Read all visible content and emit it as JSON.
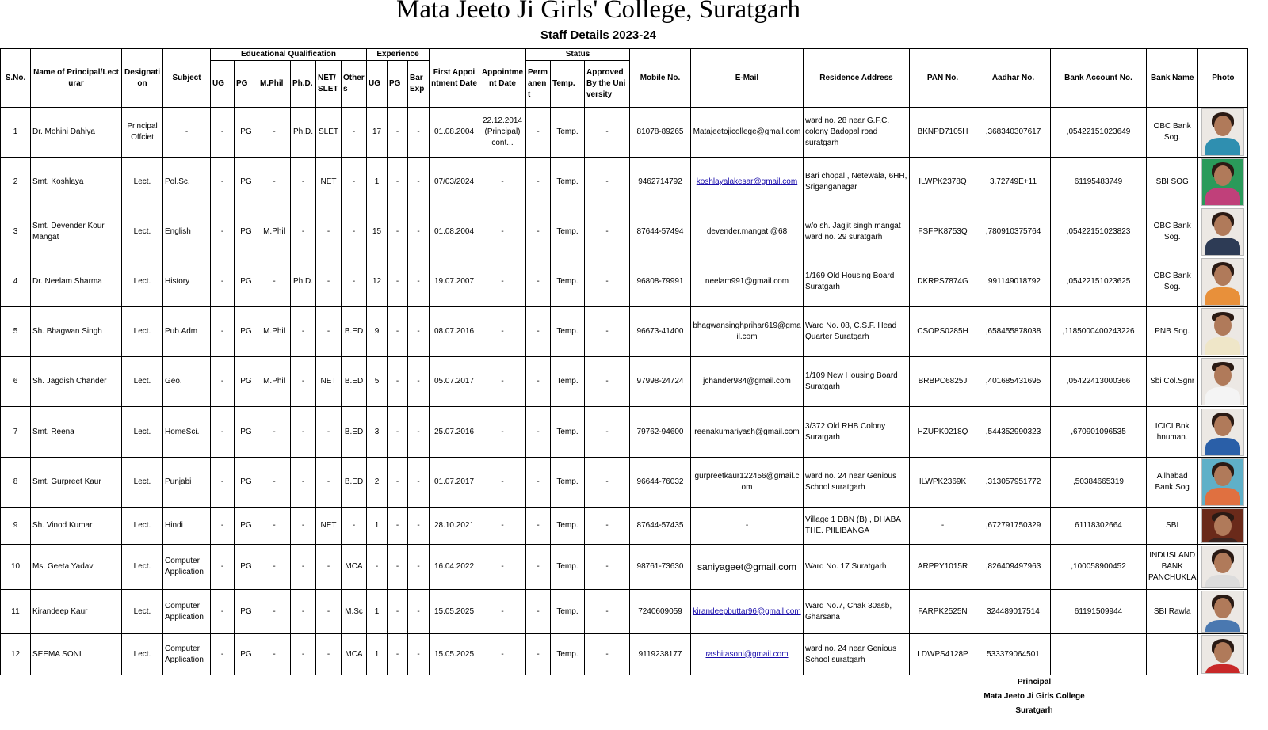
{
  "title": "Mata Jeeto Ji Girls' College, Suratgarh",
  "subtitle": "Staff Details 2023-24",
  "headers": {
    "sno": "S.No.",
    "name": "Name of Principal/Lecturar",
    "designation": "Designation",
    "subject": "Subject",
    "edu_group": "Educational Qualification",
    "edu": [
      "UG",
      "PG",
      "M.Phil",
      "Ph.D.",
      "NET/SLET",
      "Others"
    ],
    "exp_group": "Experience",
    "exp": [
      "UG",
      "PG",
      "Bar Exp"
    ],
    "first_appointment": "First Appointment Date",
    "appointment": "Appointment Date",
    "status_group": "Status",
    "status": [
      "Permanent",
      "Temp.",
      "Approved By the University"
    ],
    "mobile": "Mobile No.",
    "email": "E-Mail",
    "address": "Residence Address",
    "pan": "PAN No.",
    "aadhar": "Aadhar No.",
    "bank_account": "Bank Account No.",
    "bank_name": "Bank Name",
    "photo": "Photo"
  },
  "colors": {
    "link": "#1a0dab",
    "border": "#000000"
  },
  "rows": [
    {
      "sno": "1",
      "name": "Dr. Mohini Dahiya",
      "designation": "Principal Offciet",
      "subject": "-",
      "edu": [
        "-",
        "PG",
        "-",
        "Ph.D.",
        "SLET",
        "-"
      ],
      "exp": [
        "17",
        "-",
        "-"
      ],
      "first": "01.08.2004",
      "appt": "22.12.2014 (Principal) cont...",
      "status": [
        "-",
        "Temp.",
        "-"
      ],
      "mobile": "81078-89265",
      "email": "Matajeetojicollege@gmail.com",
      "email_link": false,
      "address": "ward no. 28 near G.F.C. colony Badopal road suratgarh",
      "pan": "BKNPD7105H",
      "aadhar": ",368340307617",
      "account": ",05422151023649",
      "bank": "OBC Bank Sog.",
      "photo": "woman-teal"
    },
    {
      "sno": "2",
      "name": "Smt. Koshlaya",
      "designation": "Lect.",
      "subject": "Pol.Sc.",
      "edu": [
        "-",
        "PG",
        "-",
        "-",
        "NET",
        "-"
      ],
      "exp": [
        "1",
        "-",
        "-"
      ],
      "first": "07/03/2024",
      "appt": "-",
      "status": [
        "-",
        "Temp.",
        "-"
      ],
      "mobile": "9462714792",
      "email": "koshlayalakesar@gmail.com",
      "email_link": true,
      "address": "Bari chopal , Netewala, 6HH, Sriganganagar",
      "pan": "ILWPK2378Q",
      "aadhar": "3.72749E+11",
      "account": "61195483749",
      "bank": "SBI SOG",
      "photo": "woman-pink"
    },
    {
      "sno": "3",
      "name": "Smt. Devender Kour Mangat",
      "designation": "Lect.",
      "subject": "English",
      "edu": [
        "-",
        "PG",
        "M.Phil",
        "-",
        "-",
        "-"
      ],
      "exp": [
        "15",
        "-",
        "-"
      ],
      "first": "01.08.2004",
      "appt": "-",
      "status": [
        "-",
        "Temp.",
        "-"
      ],
      "mobile": "87644-57494",
      "email": "devender.mangat @68",
      "email_link": false,
      "address": "w/o sh. Jagjit singh mangat ward no. 29 suratgarh",
      "pan": "FSFPK8753Q",
      "aadhar": ",780910375764",
      "account": ",05422151023823",
      "bank": "OBC Bank Sog.",
      "photo": "woman-dark"
    },
    {
      "sno": "4",
      "name": "Dr. Neelam Sharma",
      "designation": "Lect.",
      "subject": "History",
      "edu": [
        "-",
        "PG",
        "-",
        "Ph.D.",
        "-",
        "-"
      ],
      "exp": [
        "12",
        "-",
        "-"
      ],
      "first": "19.07.2007",
      "appt": "-",
      "status": [
        "-",
        "Temp.",
        "-"
      ],
      "mobile": "96808-79991",
      "email": "neelam991@gmail.com",
      "email_link": false,
      "address": "1/169 Old Housing Board Suratgarh",
      "pan": "DKRPS7874G",
      "aadhar": ",991149018792",
      "account": ",05422151023625",
      "bank": "OBC Bank Sog.",
      "photo": "woman-orange"
    },
    {
      "sno": "5",
      "name": "Sh. Bhagwan Singh",
      "designation": "Lect.",
      "subject": "Pub.Adm",
      "edu": [
        "-",
        "PG",
        "M.Phil",
        "-",
        "-",
        "B.ED"
      ],
      "exp": [
        "9",
        "-",
        "-"
      ],
      "first": "08.07.2016",
      "appt": "-",
      "status": [
        "-",
        "Temp.",
        "-"
      ],
      "mobile": "96673-41400",
      "email": "bhagwansinghprihar619@gmail.com",
      "email_link": false,
      "address": "Ward No. 08, C.S.F. Head Quarter Suratgarh",
      "pan": "CSOPS0285H",
      "aadhar": ",658455878038",
      "account": ",1185000400243226",
      "bank": "PNB Sog.",
      "photo": "man-cream"
    },
    {
      "sno": "6",
      "name": "Sh. Jagdish Chander",
      "designation": "Lect.",
      "subject": "Geo.",
      "edu": [
        "-",
        "PG",
        "M.Phil",
        "-",
        "NET",
        "B.ED"
      ],
      "exp": [
        "5",
        "-",
        "-"
      ],
      "first": "05.07.2017",
      "appt": "-",
      "status": [
        "-",
        "Temp.",
        "-"
      ],
      "mobile": "97998-24724",
      "email": "jchander984@gmail.com",
      "email_link": false,
      "address": "1/109 New Housing Board Suratgarh",
      "pan": "BRBPC6825J",
      "aadhar": ",401685431695",
      "account": ",05422413000366",
      "bank": "Sbi Col.Sgnr",
      "photo": "man-white"
    },
    {
      "sno": "7",
      "name": "Smt. Reena",
      "designation": "Lect.",
      "subject": "HomeSci.",
      "edu": [
        "-",
        "PG",
        "-",
        "-",
        "-",
        "B.ED"
      ],
      "exp": [
        "3",
        "-",
        "-"
      ],
      "first": "25.07.2016",
      "appt": "-",
      "status": [
        "-",
        "Temp.",
        "-"
      ],
      "mobile": "79762-94600",
      "email": "reenakumariyash@gmail.com",
      "email_link": false,
      "address": "3/372 Old RHB Colony Suratgarh",
      "pan": "HZUPK0218Q",
      "aadhar": ",544352990323",
      "account": ",670901096535",
      "bank": "ICICI Bnk hnuman.",
      "photo": "woman-blue"
    },
    {
      "sno": "8",
      "name": "Smt. Gurpreet Kaur",
      "designation": "Lect.",
      "subject": "Punjabi",
      "edu": [
        "-",
        "PG",
        "-",
        "-",
        "-",
        "B.ED"
      ],
      "exp": [
        "2",
        "-",
        "-"
      ],
      "first": "01.07.2017",
      "appt": "-",
      "status": [
        "-",
        "Temp.",
        "-"
      ],
      "mobile": "96644-76032",
      "email": "gurpreetkaur122456@gmail.com",
      "email_link": false,
      "address": "ward no. 24 near  Genious School suratgarh",
      "pan": "ILWPK2369K",
      "aadhar": ",313057951772",
      "account": ",50384665319",
      "bank": "Allhabad Bank Sog",
      "photo": "woman-sky"
    },
    {
      "sno": "9",
      "name": "Sh. Vinod Kumar",
      "designation": "Lect.",
      "subject": "Hindi",
      "edu": [
        "-",
        "PG",
        "-",
        "-",
        "NET",
        "-"
      ],
      "exp": [
        "1",
        "-",
        "-"
      ],
      "first": "28.10.2021",
      "appt": "-",
      "status": [
        "-",
        "Temp.",
        "-"
      ],
      "mobile": "87644-57435",
      "email": "-",
      "email_link": false,
      "address": "Village 1 DBN (B) , DHABA THE. PIILIBANGA",
      "pan": "-",
      "aadhar": ",672791750329",
      "account": "61118302664",
      "bank": "SBI",
      "photo": "man-suit"
    },
    {
      "sno": "10",
      "name": "Ms. Geeta Yadav",
      "designation": "Lect.",
      "subject": "Computer Application",
      "edu": [
        "-",
        "PG",
        "-",
        "-",
        "-",
        "MCA"
      ],
      "exp": [
        "-",
        "-",
        "-"
      ],
      "first": "16.04.2022",
      "appt": "-",
      "status": [
        "-",
        "Temp.",
        "-"
      ],
      "mobile": "98761-73630",
      "email": "saniyageet@gmail.com",
      "email_link": false,
      "address": "Ward No. 17 Suratgarh",
      "pan": "ARPPY1015R",
      "aadhar": ",826409497963",
      "account": ",100058900452",
      "bank": "INDUSLAND BANK PANCHUKLA",
      "photo": "woman-white"
    },
    {
      "sno": "11",
      "name": "Kirandeep Kaur",
      "designation": "Lect.",
      "subject": "Computer Application",
      "edu": [
        "-",
        "PG",
        "-",
        "-",
        "-",
        "M.Sc"
      ],
      "exp": [
        "1",
        "-",
        "-"
      ],
      "first": "15.05.2025",
      "appt": "-",
      "status": [
        "-",
        "Temp.",
        "-"
      ],
      "mobile": "7240609059",
      "email": "kirandeepbuttar96@gmail.com",
      "email_link": true,
      "address": "Ward No.7, Chak 30asb, Gharsana",
      "pan": "FARPK2525N",
      "aadhar": "324489017514",
      "account": "61191509944",
      "bank": "SBI Rawla",
      "photo": "woman-navy"
    },
    {
      "sno": "12",
      "name": "SEEMA SONI",
      "designation": "Lect.",
      "subject": "Computer Application",
      "edu": [
        "-",
        "PG",
        "-",
        "-",
        "-",
        "MCA"
      ],
      "exp": [
        "1",
        "-",
        "-"
      ],
      "first": "15.05.2025",
      "appt": "-",
      "status": [
        "-",
        "Temp.",
        "-"
      ],
      "mobile": "9119238177",
      "email": "rashitasoni@gmail.com",
      "email_link": true,
      "address": "ward no. 24 near  Genious School suratgarh",
      "pan": "LDWPS4128P",
      "aadhar": "533379064501",
      "account": "",
      "bank": "",
      "photo": "woman-red"
    }
  ],
  "footer": {
    "line1": "Principal",
    "line2": "Mata Jeeto Ji Girls College",
    "line3": "Suratgarh"
  }
}
